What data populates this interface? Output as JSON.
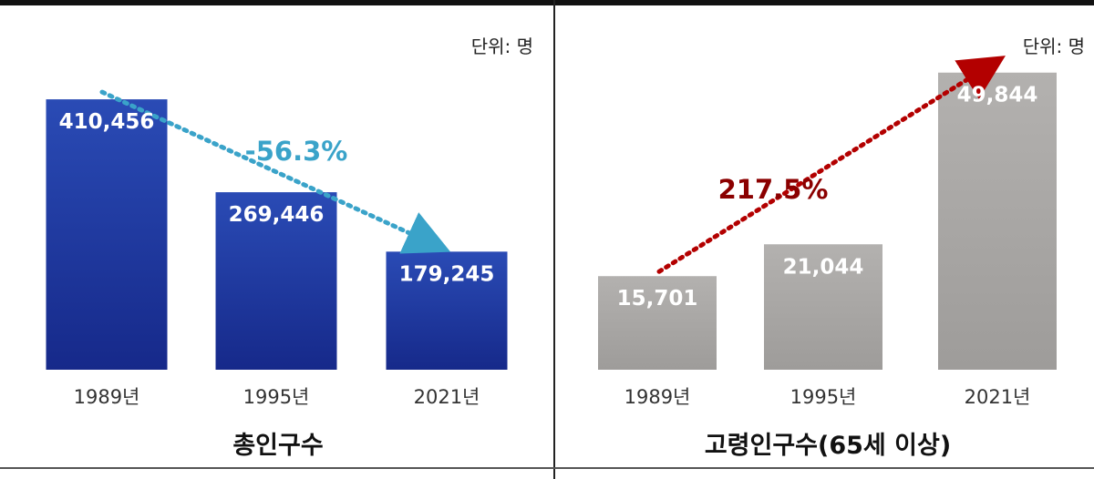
{
  "chart_data": [
    {
      "type": "bar",
      "title": "총인구수",
      "unit_label": "단위: 명",
      "categories": [
        "1989년",
        "1995년",
        "2021년"
      ],
      "values": [
        410456,
        269446,
        179245
      ],
      "value_labels": [
        "410,456",
        "269,446",
        "179,245"
      ],
      "change_label": "-56.3%",
      "ylim": [
        0,
        470000
      ],
      "bar_color": "#1e3a9c",
      "arrow_color": "#3aa3c9"
    },
    {
      "type": "bar",
      "title": "고령인구수(65세 이상)",
      "unit_label": "단위: 명",
      "categories": [
        "1989년",
        "1995년",
        "2021년"
      ],
      "values": [
        15701,
        21044,
        49844
      ],
      "value_labels": [
        "15,701",
        "21,044",
        "49,844"
      ],
      "change_label": "217.5%",
      "ylim": [
        0,
        55000
      ],
      "bar_color": "#a9a7a5",
      "arrow_color": "#b30000"
    }
  ]
}
